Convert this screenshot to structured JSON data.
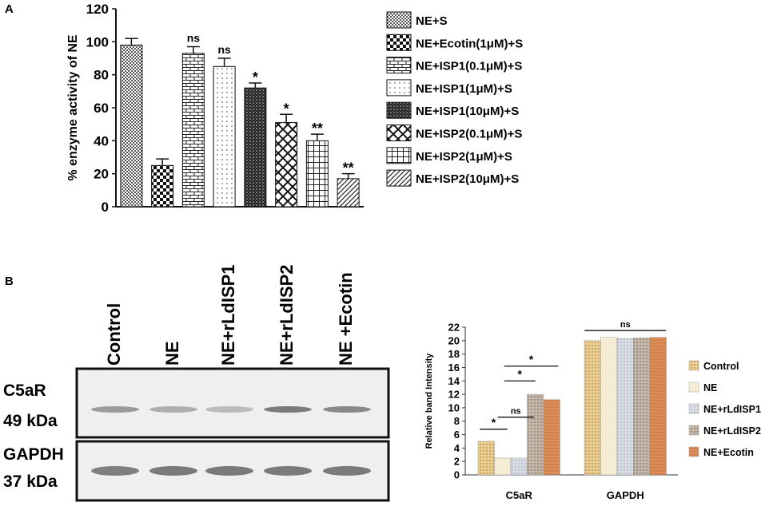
{
  "panel_a_label": "A",
  "panel_b_label": "B",
  "chart_data": [
    {
      "type": "bar",
      "ylabel": "% enzyme activity of NE",
      "ylim": [
        0,
        120
      ],
      "yticks": [
        0,
        20,
        40,
        60,
        80,
        100,
        120
      ],
      "categories": [
        "NE+S",
        "NE+Ecotin(1μM)+S",
        "NE+ISP1(0.1μM)+S",
        "NE+ISP1(1μM)+S",
        "NE+ISP1(10μM)+S",
        "NE+ISP2(0.1μM)+S",
        "NE+ISP2(1μM)+S",
        "NE+ISP2(10μM)+S"
      ],
      "values": [
        98,
        25,
        93,
        85,
        72,
        51,
        40,
        17
      ],
      "errors": [
        4,
        4,
        4,
        5,
        3,
        5,
        4,
        3
      ],
      "significance": [
        "",
        "",
        "ns",
        "ns",
        "*",
        "*",
        "**",
        "**"
      ],
      "patterns": [
        "dense-dots",
        "checker",
        "bricks",
        "sparse-dots",
        "dark-dots",
        "crosshatch",
        "grid",
        "diagonal"
      ],
      "legend_placement": "right"
    },
    {
      "type": "bar",
      "ylabel": "Relative band Intensity",
      "ylim": [
        0,
        22
      ],
      "yticks": [
        0,
        2,
        4,
        6,
        8,
        10,
        12,
        14,
        16,
        18,
        20,
        22
      ],
      "categories": [
        "C5aR",
        "GAPDH"
      ],
      "series": [
        {
          "name": "Control",
          "values": [
            5.0,
            20.0
          ],
          "color": "#e8c98a"
        },
        {
          "name": "NE",
          "values": [
            2.5,
            20.5
          ],
          "color": "#f4ecd0"
        },
        {
          "name": "NE+rLdISP1",
          "values": [
            2.5,
            20.3
          ],
          "color": "#cfd6e0"
        },
        {
          "name": "NE+rLdISP2",
          "values": [
            12.0,
            20.4
          ],
          "color": "#b8a898"
        },
        {
          "name": "NE+Ecotin",
          "values": [
            11.2,
            20.5
          ],
          "color": "#dc8e5a"
        }
      ],
      "comparisons": [
        "*",
        "ns",
        "*",
        "*",
        "ns"
      ],
      "legend_placement": "right"
    }
  ],
  "blot": {
    "lanes": [
      "Control",
      "NE",
      "NE+rLdISP1",
      "NE+rLdISP2",
      "NE +Ecotin"
    ],
    "rows": [
      {
        "protein": "C5aR",
        "size": "49 kDa",
        "intensity": [
          0.55,
          0.35,
          0.2,
          0.9,
          0.75
        ]
      },
      {
        "protein": "GAPDH",
        "size": "37 kDa",
        "intensity": [
          0.85,
          0.9,
          0.9,
          0.9,
          0.9
        ]
      }
    ]
  }
}
